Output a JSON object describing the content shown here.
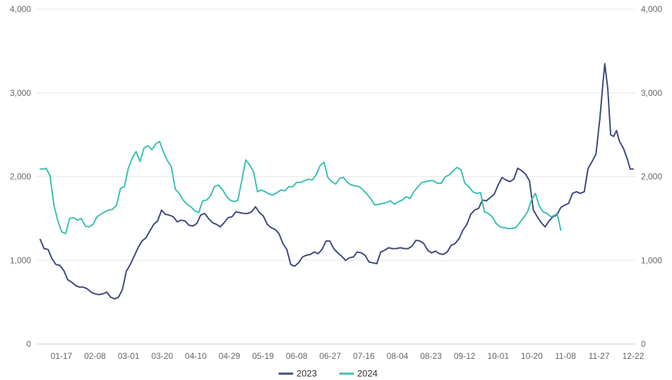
{
  "chart_data": {
    "type": "line",
    "title": "",
    "xlabel": "",
    "ylabel": "",
    "ylim": [
      0,
      4000
    ],
    "y_ticks": [
      "0",
      "1,000",
      "2,000",
      "3,000",
      "4,000"
    ],
    "y2_ticks": [
      "0",
      "1,000",
      "2,000",
      "3,000",
      "4,000"
    ],
    "x_tick_labels": [
      "01-17",
      "02-08",
      "03-01",
      "03-20",
      "04-10",
      "04-29",
      "05-19",
      "06-08",
      "06-27",
      "07-16",
      "08-04",
      "08-23",
      "09-12",
      "10-01",
      "10-20",
      "11-08",
      "11-27",
      "12-22"
    ],
    "grid": true,
    "legend": "bottom-center",
    "series": [
      {
        "name": "2023",
        "color": "#3d4a7e",
        "points": [
          [
            0,
            1250
          ],
          [
            4,
            1140
          ],
          [
            8,
            1130
          ],
          [
            12,
            1020
          ],
          [
            16,
            950
          ],
          [
            20,
            940
          ],
          [
            24,
            880
          ],
          [
            28,
            770
          ],
          [
            32,
            740
          ],
          [
            36,
            700
          ],
          [
            40,
            680
          ],
          [
            44,
            680
          ],
          [
            48,
            660
          ],
          [
            52,
            620
          ],
          [
            56,
            600
          ],
          [
            60,
            590
          ],
          [
            64,
            600
          ],
          [
            68,
            620
          ],
          [
            72,
            560
          ],
          [
            76,
            540
          ],
          [
            80,
            560
          ],
          [
            84,
            650
          ],
          [
            88,
            870
          ],
          [
            92,
            950
          ],
          [
            96,
            1050
          ],
          [
            100,
            1150
          ],
          [
            104,
            1230
          ],
          [
            108,
            1270
          ],
          [
            112,
            1350
          ],
          [
            116,
            1430
          ],
          [
            120,
            1470
          ],
          [
            124,
            1600
          ],
          [
            128,
            1550
          ],
          [
            132,
            1540
          ],
          [
            136,
            1520
          ],
          [
            140,
            1460
          ],
          [
            144,
            1480
          ],
          [
            148,
            1470
          ],
          [
            152,
            1420
          ],
          [
            156,
            1410
          ],
          [
            160,
            1440
          ],
          [
            164,
            1540
          ],
          [
            168,
            1560
          ],
          [
            172,
            1500
          ],
          [
            176,
            1450
          ],
          [
            180,
            1430
          ],
          [
            184,
            1400
          ],
          [
            188,
            1450
          ],
          [
            192,
            1510
          ],
          [
            196,
            1520
          ],
          [
            200,
            1580
          ],
          [
            204,
            1570
          ],
          [
            208,
            1560
          ],
          [
            212,
            1560
          ],
          [
            216,
            1580
          ],
          [
            220,
            1640
          ],
          [
            224,
            1570
          ],
          [
            228,
            1530
          ],
          [
            232,
            1430
          ],
          [
            236,
            1390
          ],
          [
            240,
            1370
          ],
          [
            244,
            1320
          ],
          [
            248,
            1200
          ],
          [
            252,
            1130
          ],
          [
            256,
            950
          ],
          [
            260,
            930
          ],
          [
            264,
            970
          ],
          [
            268,
            1040
          ],
          [
            272,
            1060
          ],
          [
            276,
            1070
          ],
          [
            280,
            1100
          ],
          [
            284,
            1080
          ],
          [
            288,
            1130
          ],
          [
            292,
            1230
          ],
          [
            296,
            1230
          ],
          [
            300,
            1140
          ],
          [
            304,
            1090
          ],
          [
            308,
            1050
          ],
          [
            312,
            1000
          ],
          [
            316,
            1030
          ],
          [
            320,
            1040
          ],
          [
            324,
            1100
          ],
          [
            328,
            1090
          ],
          [
            332,
            1060
          ],
          [
            336,
            980
          ],
          [
            340,
            970
          ],
          [
            344,
            960
          ],
          [
            348,
            1100
          ],
          [
            352,
            1120
          ],
          [
            356,
            1150
          ],
          [
            360,
            1140
          ],
          [
            364,
            1140
          ],
          [
            368,
            1150
          ],
          [
            372,
            1140
          ],
          [
            376,
            1140
          ],
          [
            380,
            1170
          ],
          [
            384,
            1240
          ],
          [
            388,
            1230
          ],
          [
            392,
            1200
          ],
          [
            396,
            1120
          ],
          [
            400,
            1090
          ],
          [
            404,
            1110
          ],
          [
            408,
            1080
          ],
          [
            412,
            1070
          ],
          [
            416,
            1100
          ],
          [
            420,
            1180
          ],
          [
            424,
            1200
          ],
          [
            428,
            1260
          ],
          [
            432,
            1360
          ],
          [
            436,
            1430
          ],
          [
            440,
            1550
          ],
          [
            444,
            1600
          ],
          [
            448,
            1620
          ],
          [
            452,
            1720
          ],
          [
            456,
            1710
          ],
          [
            460,
            1750
          ],
          [
            464,
            1790
          ],
          [
            468,
            1900
          ],
          [
            472,
            1990
          ],
          [
            476,
            1960
          ],
          [
            480,
            1940
          ],
          [
            484,
            1970
          ],
          [
            488,
            2100
          ],
          [
            492,
            2070
          ],
          [
            496,
            2030
          ],
          [
            500,
            1950
          ],
          [
            504,
            1600
          ],
          [
            508,
            1520
          ],
          [
            512,
            1450
          ],
          [
            516,
            1400
          ],
          [
            520,
            1470
          ],
          [
            524,
            1520
          ],
          [
            528,
            1540
          ],
          [
            532,
            1630
          ],
          [
            536,
            1660
          ],
          [
            540,
            1680
          ],
          [
            544,
            1800
          ],
          [
            548,
            1820
          ],
          [
            552,
            1800
          ],
          [
            556,
            1820
          ],
          [
            560,
            2100
          ],
          [
            564,
            2180
          ],
          [
            568,
            2270
          ],
          [
            572,
            2700
          ],
          [
            575,
            3100
          ],
          [
            577,
            3350
          ],
          [
            580,
            3050
          ],
          [
            583,
            2500
          ],
          [
            586,
            2480
          ],
          [
            589,
            2550
          ],
          [
            592,
            2420
          ],
          [
            596,
            2340
          ],
          [
            600,
            2210
          ],
          [
            603,
            2090
          ],
          [
            606,
            2090
          ]
        ]
      },
      {
        "name": "2024",
        "color": "#3dbfb4",
        "points": [
          [
            0,
            2090
          ],
          [
            4,
            2090
          ],
          [
            6,
            2100
          ],
          [
            10,
            2010
          ],
          [
            14,
            1660
          ],
          [
            18,
            1470
          ],
          [
            22,
            1340
          ],
          [
            26,
            1320
          ],
          [
            30,
            1500
          ],
          [
            34,
            1510
          ],
          [
            38,
            1480
          ],
          [
            42,
            1500
          ],
          [
            46,
            1410
          ],
          [
            50,
            1400
          ],
          [
            54,
            1430
          ],
          [
            58,
            1520
          ],
          [
            62,
            1550
          ],
          [
            66,
            1580
          ],
          [
            70,
            1600
          ],
          [
            74,
            1610
          ],
          [
            78,
            1660
          ],
          [
            82,
            1860
          ],
          [
            86,
            1880
          ],
          [
            90,
            2100
          ],
          [
            94,
            2220
          ],
          [
            98,
            2300
          ],
          [
            102,
            2180
          ],
          [
            106,
            2340
          ],
          [
            110,
            2370
          ],
          [
            114,
            2320
          ],
          [
            118,
            2390
          ],
          [
            122,
            2420
          ],
          [
            126,
            2290
          ],
          [
            130,
            2190
          ],
          [
            134,
            2120
          ],
          [
            138,
            1850
          ],
          [
            142,
            1800
          ],
          [
            146,
            1720
          ],
          [
            150,
            1670
          ],
          [
            154,
            1640
          ],
          [
            158,
            1590
          ],
          [
            162,
            1570
          ],
          [
            166,
            1710
          ],
          [
            170,
            1720
          ],
          [
            174,
            1770
          ],
          [
            178,
            1880
          ],
          [
            182,
            1900
          ],
          [
            186,
            1850
          ],
          [
            190,
            1770
          ],
          [
            194,
            1720
          ],
          [
            198,
            1700
          ],
          [
            202,
            1720
          ],
          [
            206,
            1950
          ],
          [
            210,
            2200
          ],
          [
            214,
            2140
          ],
          [
            218,
            2060
          ],
          [
            222,
            1820
          ],
          [
            226,
            1840
          ],
          [
            230,
            1820
          ],
          [
            234,
            1790
          ],
          [
            238,
            1780
          ],
          [
            242,
            1810
          ],
          [
            246,
            1840
          ],
          [
            250,
            1830
          ],
          [
            254,
            1880
          ],
          [
            258,
            1880
          ],
          [
            262,
            1930
          ],
          [
            266,
            1930
          ],
          [
            270,
            1950
          ],
          [
            274,
            1970
          ],
          [
            278,
            1960
          ],
          [
            282,
            2020
          ],
          [
            286,
            2130
          ],
          [
            290,
            2170
          ],
          [
            294,
            1990
          ],
          [
            298,
            1940
          ],
          [
            302,
            1910
          ],
          [
            306,
            1980
          ],
          [
            310,
            1990
          ],
          [
            314,
            1930
          ],
          [
            318,
            1900
          ],
          [
            322,
            1890
          ],
          [
            326,
            1880
          ],
          [
            330,
            1840
          ],
          [
            334,
            1790
          ],
          [
            338,
            1730
          ],
          [
            342,
            1660
          ],
          [
            346,
            1670
          ],
          [
            350,
            1680
          ],
          [
            354,
            1690
          ],
          [
            358,
            1710
          ],
          [
            362,
            1670
          ],
          [
            366,
            1700
          ],
          [
            370,
            1720
          ],
          [
            374,
            1760
          ],
          [
            378,
            1740
          ],
          [
            382,
            1820
          ],
          [
            386,
            1880
          ],
          [
            390,
            1930
          ],
          [
            394,
            1940
          ],
          [
            398,
            1950
          ],
          [
            402,
            1950
          ],
          [
            406,
            1920
          ],
          [
            410,
            1920
          ],
          [
            414,
            2000
          ],
          [
            418,
            2020
          ],
          [
            422,
            2070
          ],
          [
            426,
            2110
          ],
          [
            430,
            2080
          ],
          [
            434,
            1920
          ],
          [
            438,
            1880
          ],
          [
            442,
            1820
          ],
          [
            446,
            1800
          ],
          [
            450,
            1810
          ],
          [
            454,
            1580
          ],
          [
            458,
            1560
          ],
          [
            462,
            1520
          ],
          [
            466,
            1440
          ],
          [
            470,
            1400
          ],
          [
            474,
            1390
          ],
          [
            478,
            1380
          ],
          [
            482,
            1380
          ],
          [
            486,
            1390
          ],
          [
            490,
            1450
          ],
          [
            494,
            1510
          ],
          [
            498,
            1580
          ],
          [
            502,
            1720
          ],
          [
            506,
            1800
          ],
          [
            510,
            1650
          ],
          [
            514,
            1580
          ],
          [
            518,
            1560
          ],
          [
            522,
            1520
          ],
          [
            526,
            1540
          ],
          [
            528,
            1560
          ],
          [
            530,
            1470
          ],
          [
            532,
            1360
          ]
        ]
      }
    ]
  }
}
